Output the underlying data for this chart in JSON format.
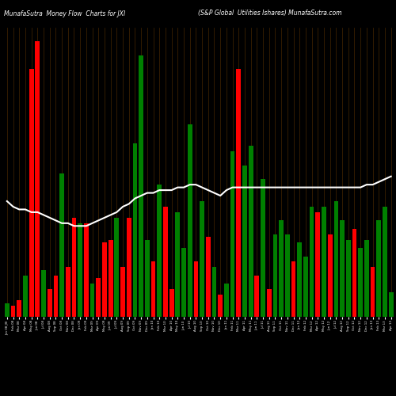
{
  "title_left": "MunafaSutra  Money Flow  Charts for JXI",
  "title_right": "(S&P Global  Utilities Ishares) MunafaSutra.com",
  "background_color": "#000000",
  "bar_colors": [
    "green",
    "red",
    "red",
    "green",
    "red",
    "red",
    "green",
    "red",
    "red",
    "green",
    "red",
    "red",
    "green",
    "red",
    "green",
    "red",
    "red",
    "red",
    "green",
    "red",
    "red",
    "green",
    "green",
    "green",
    "red",
    "green",
    "red",
    "red",
    "green",
    "green",
    "green",
    "red",
    "green",
    "red",
    "green",
    "red",
    "green",
    "green",
    "red",
    "green",
    "green",
    "red",
    "green",
    "red",
    "green",
    "green",
    "green",
    "red",
    "green",
    "green",
    "green",
    "red",
    "green",
    "red",
    "green",
    "green",
    "green",
    "red",
    "green",
    "green",
    "red",
    "green",
    "green",
    "green"
  ],
  "bar_heights": [
    0.05,
    0.04,
    0.06,
    0.15,
    0.9,
    1.0,
    0.17,
    0.1,
    0.15,
    0.52,
    0.18,
    0.36,
    0.34,
    0.34,
    0.12,
    0.14,
    0.27,
    0.28,
    0.36,
    0.18,
    0.36,
    0.63,
    0.95,
    0.28,
    0.2,
    0.48,
    0.4,
    0.1,
    0.38,
    0.25,
    0.7,
    0.2,
    0.42,
    0.29,
    0.18,
    0.08,
    0.12,
    0.6,
    0.9,
    0.55,
    0.62,
    0.15,
    0.5,
    0.1,
    0.3,
    0.35,
    0.3,
    0.2,
    0.27,
    0.22,
    0.4,
    0.38,
    0.4,
    0.3,
    0.42,
    0.35,
    0.28,
    0.32,
    0.25,
    0.28,
    0.18,
    0.35,
    0.4,
    0.09
  ],
  "line_y": [
    0.42,
    0.4,
    0.39,
    0.39,
    0.38,
    0.38,
    0.37,
    0.36,
    0.35,
    0.34,
    0.34,
    0.33,
    0.33,
    0.33,
    0.34,
    0.35,
    0.36,
    0.37,
    0.38,
    0.4,
    0.41,
    0.43,
    0.44,
    0.45,
    0.45,
    0.46,
    0.46,
    0.46,
    0.47,
    0.47,
    0.48,
    0.48,
    0.47,
    0.46,
    0.45,
    0.44,
    0.46,
    0.47,
    0.47,
    0.47,
    0.47,
    0.47,
    0.47,
    0.47,
    0.47,
    0.47,
    0.47,
    0.47,
    0.47,
    0.47,
    0.47,
    0.47,
    0.47,
    0.47,
    0.47,
    0.47,
    0.47,
    0.47,
    0.47,
    0.48,
    0.48,
    0.49,
    0.5,
    0.51
  ],
  "ylim": [
    0,
    1.05
  ],
  "line_color": "#ffffff",
  "grid_color": "#3a2000",
  "bar_width": 0.75,
  "labels": [
    "Jan 08 JXI",
    "Feb 08",
    "Mar 08",
    "Apr 08",
    "May 08",
    "Jun 08",
    "Jul 08",
    "Aug 08",
    "Sep 08",
    "Oct 08",
    "Nov 08",
    "Dec 08",
    "Jan 09",
    "Feb 09",
    "Mar 09",
    "Apr 09",
    "May 09",
    "Jun 09",
    "Jul 09",
    "Aug 09",
    "Sep 09",
    "Oct 09",
    "Nov 09",
    "Dec 09",
    "Jan 10",
    "Feb 10",
    "Mar 10",
    "Apr 10",
    "May 10",
    "Jun 10",
    "Jul 10",
    "Aug 10",
    "Sep 10",
    "Oct 10",
    "Nov 10",
    "Dec 10",
    "Jan 11",
    "Feb 11",
    "Mar 11",
    "Apr 11",
    "May 11",
    "Jun 11",
    "Jul 11",
    "Aug 11",
    "Sep 11",
    "Oct 11",
    "Nov 11",
    "Dec 11",
    "Jan 12",
    "Feb 12",
    "Mar 12",
    "Apr 12",
    "May 12",
    "Jun 12",
    "Jul 12",
    "Aug 12",
    "Sep 12",
    "Oct 12",
    "Nov 12",
    "Dec 12",
    "Jan 13",
    "Feb 13",
    "Mar 13",
    "Apr 13"
  ]
}
